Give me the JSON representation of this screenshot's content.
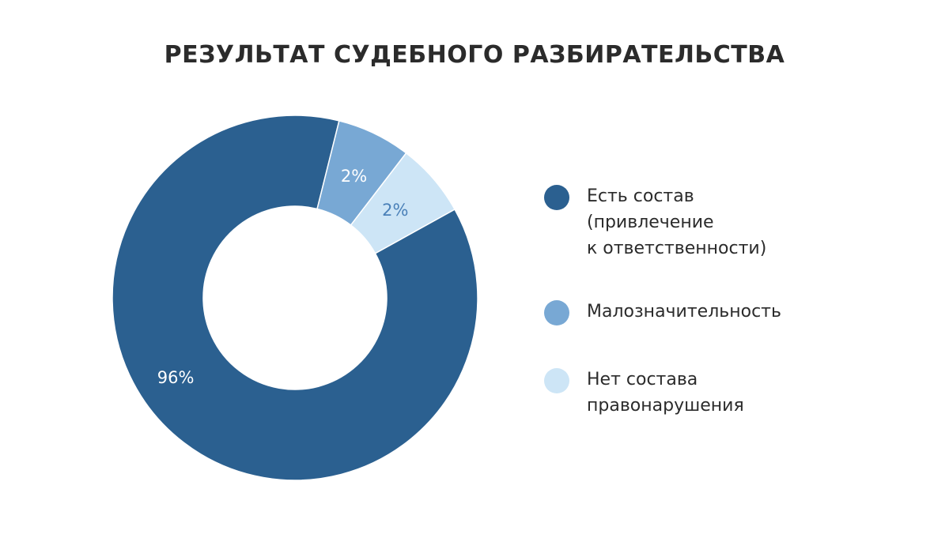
{
  "chart_data": {
    "type": "pie",
    "title": "РЕЗУЛЬТАТ СУДЕБНОГО РАЗБИРАТЕЛЬСТВА",
    "donut": true,
    "legend_position": "right",
    "slices": [
      {
        "label": "Есть состав\n(привлечение\nк ответственности)",
        "value": 96,
        "display": "96%",
        "color": "#2b6090",
        "label_color": "#ffffff"
      },
      {
        "label": "Малозначительность",
        "value": 2,
        "display": "2%",
        "color": "#78a8d4",
        "label_color": "#ffffff"
      },
      {
        "label": "Нет состава\nправонарушения",
        "value": 2,
        "display": "2%",
        "color": "#cde5f6",
        "label_color": "#4a80b8"
      }
    ]
  }
}
